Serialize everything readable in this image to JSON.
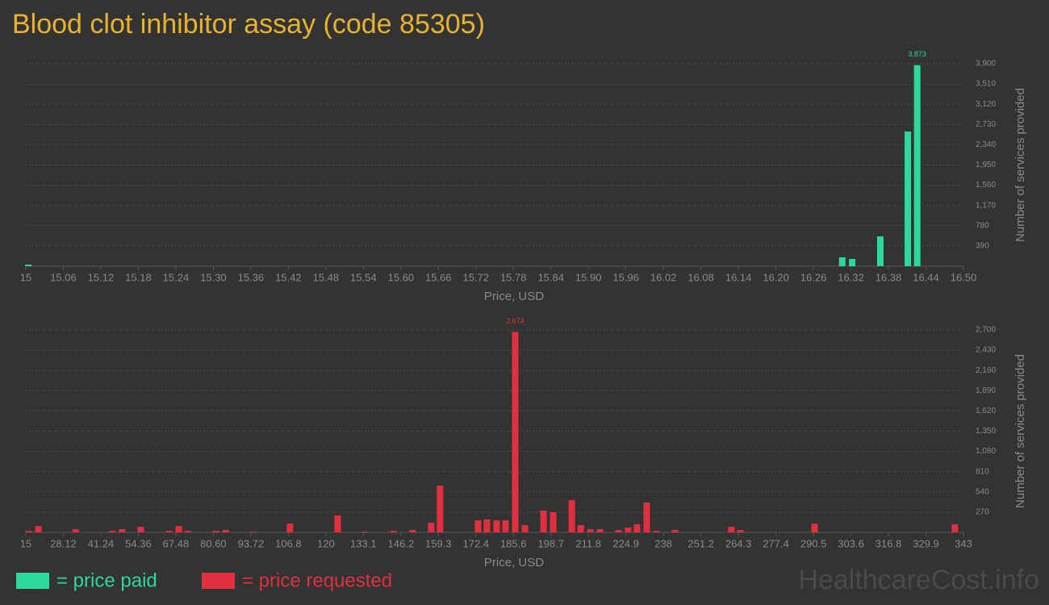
{
  "title": "Blood clot inhibitor assay (code 85305)",
  "watermark": "HealthcareCost.info",
  "chart_data": [
    {
      "type": "bar",
      "xlabel": "Price, USD",
      "ylabel": "Number of services provided",
      "grid": true,
      "x": [
        15.004,
        16.306,
        16.322,
        16.367,
        16.411,
        16.426
      ],
      "series": [
        {
          "name": "= price paid",
          "color": "#2bd99a",
          "values": [
            31,
            171,
            140,
            575,
            2595,
            3873
          ],
          "value_labels": [
            null,
            null,
            null,
            null,
            null,
            "3,873"
          ]
        }
      ],
      "xlim": [
        15,
        16.5
      ],
      "xticks": [
        15,
        15.06,
        15.12,
        15.18,
        15.24,
        {
          "value": 15.3,
          "label": "15.30"
        },
        15.36,
        15.42,
        15.48,
        15.54,
        {
          "value": 15.6,
          "label": "15.60"
        },
        15.66,
        15.72,
        15.78,
        15.84,
        {
          "value": 15.9,
          "label": "15.90"
        },
        15.96,
        16.02,
        16.08,
        16.14,
        {
          "value": 16.2,
          "label": "16.20"
        },
        16.26,
        16.32,
        16.38,
        16.44,
        {
          "value": 16.5,
          "label": "16.50"
        }
      ],
      "ylim": [
        0,
        3900
      ],
      "yticks": [
        390,
        780,
        {
          "value": 1170,
          "label": "1,170"
        },
        {
          "value": 1560,
          "label": "1,560"
        },
        {
          "value": 1950,
          "label": "1,950"
        },
        {
          "value": 2340,
          "label": "2,340"
        },
        {
          "value": 2730,
          "label": "2,730"
        },
        {
          "value": 3120,
          "label": "3,120"
        },
        {
          "value": 3510,
          "label": "3,510"
        },
        {
          "value": 3900,
          "label": "3,900"
        }
      ]
    },
    {
      "type": "bar",
      "xlabel": "Price, USD",
      "ylabel": "Number of services provided",
      "grid": true,
      "x": [
        16.0,
        19.4,
        32.4,
        45.3,
        48.7,
        55.2,
        65.1,
        68.5,
        71.6,
        81.5,
        84.9,
        94.5,
        107.4,
        124.1,
        133.7,
        143.6,
        150.3,
        156.8,
        159.9,
        173.2,
        176.3,
        179.7,
        182.8,
        186.2,
        189.6,
        196.1,
        199.5,
        206.0,
        209.1,
        212.5,
        215.9,
        222.3,
        225.7,
        228.8,
        232.2,
        235.6,
        242.1,
        261.8,
        264.9,
        290.9,
        340.0
      ],
      "series": [
        {
          "name": "= price requested",
          "color": "#e03040",
          "values": [
            20,
            85,
            43,
            20,
            43,
            75,
            20,
            85,
            20,
            20,
            32,
            10,
            118,
            226,
            10,
            20,
            32,
            129,
            624,
            161,
            172,
            161,
            161,
            2674,
            97,
            290,
            269,
            430,
            97,
            43,
            43,
            32,
            65,
            108,
            398,
            20,
            32,
            75,
            32,
            118,
            108
          ],
          "value_labels": [
            null,
            null,
            null,
            null,
            null,
            null,
            null,
            null,
            null,
            null,
            null,
            null,
            null,
            null,
            null,
            null,
            null,
            null,
            null,
            null,
            null,
            null,
            null,
            "2,674",
            null,
            null,
            null,
            null,
            null,
            null,
            null,
            null,
            null,
            null,
            null,
            null,
            null,
            null,
            null,
            null,
            null
          ]
        }
      ],
      "xlim": [
        15,
        343
      ],
      "xticks": [
        15,
        28.12,
        41.24,
        54.36,
        67.48,
        {
          "value": 80.6,
          "label": "80.60"
        },
        93.72,
        {
          "value": 106.84,
          "label": "106.8"
        },
        {
          "value": 119.96,
          "label": "120"
        },
        {
          "value": 133.08,
          "label": "133.1"
        },
        146.2,
        {
          "value": 159.32,
          "label": "159.3"
        },
        {
          "value": 172.44,
          "label": "172.4"
        },
        {
          "value": 185.56,
          "label": "185.6"
        },
        {
          "value": 198.68,
          "label": "198.7"
        },
        211.8,
        {
          "value": 224.92,
          "label": "224.9"
        },
        {
          "value": 238.04,
          "label": "238"
        },
        {
          "value": 251.16,
          "label": "251.2"
        },
        {
          "value": 264.28,
          "label": "264.3"
        },
        277.4,
        {
          "value": 290.52,
          "label": "290.5"
        },
        {
          "value": 303.64,
          "label": "303.6"
        },
        {
          "value": 316.76,
          "label": "316.8"
        },
        {
          "value": 329.88,
          "label": "329.9"
        },
        343
      ],
      "ylim": [
        0,
        2700
      ],
      "yticks": [
        270,
        540,
        810,
        {
          "value": 1080,
          "label": "1,080"
        },
        {
          "value": 1350,
          "label": "1,350"
        },
        {
          "value": 1620,
          "label": "1,620"
        },
        {
          "value": 1890,
          "label": "1,890"
        },
        {
          "value": 2160,
          "label": "2,160"
        },
        {
          "value": 2430,
          "label": "2,430"
        },
        {
          "value": 2700,
          "label": "2,700"
        }
      ]
    }
  ]
}
